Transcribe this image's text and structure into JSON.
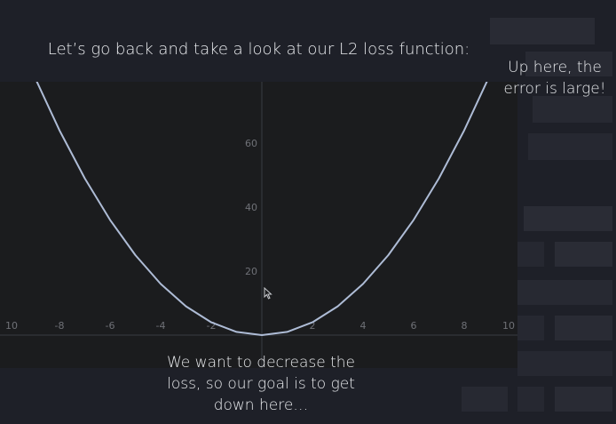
{
  "slide": {
    "top_caption": "Let’s go back and take a look at our L2 loss function:",
    "side_caption": "Up here, the error is large!",
    "bottom_caption": "We want to decrease the loss, so our goal is to get down here…"
  },
  "colors": {
    "background": "#1e2028",
    "panel": "#1b1c1e",
    "curve": "#aebcd6",
    "axis_text": "#6f7177"
  },
  "icons": [
    "mouse-cursor-icon"
  ],
  "chart_data": {
    "type": "line",
    "function": "y = x^2",
    "x_ticks": [
      "10",
      "-8",
      "-6",
      "-4",
      "-2",
      "2",
      "4",
      "6",
      "8",
      "10"
    ],
    "y_ticks": [
      "20",
      "40",
      "60"
    ],
    "xlim": [
      -10,
      10
    ],
    "ylim": [
      0,
      80
    ],
    "grid": false,
    "series": [
      {
        "x": [
          -9.4,
          -9,
          -8,
          -7,
          -6,
          -5,
          -4,
          -3,
          -2,
          -1,
          0,
          1,
          2,
          3,
          4,
          5,
          6,
          7,
          8,
          9,
          9.4
        ],
        "y": [
          88.36,
          81,
          64,
          49,
          36,
          25,
          16,
          9,
          4,
          1,
          0,
          1,
          4,
          9,
          16,
          25,
          36,
          49,
          64,
          81,
          88.36
        ]
      }
    ]
  }
}
